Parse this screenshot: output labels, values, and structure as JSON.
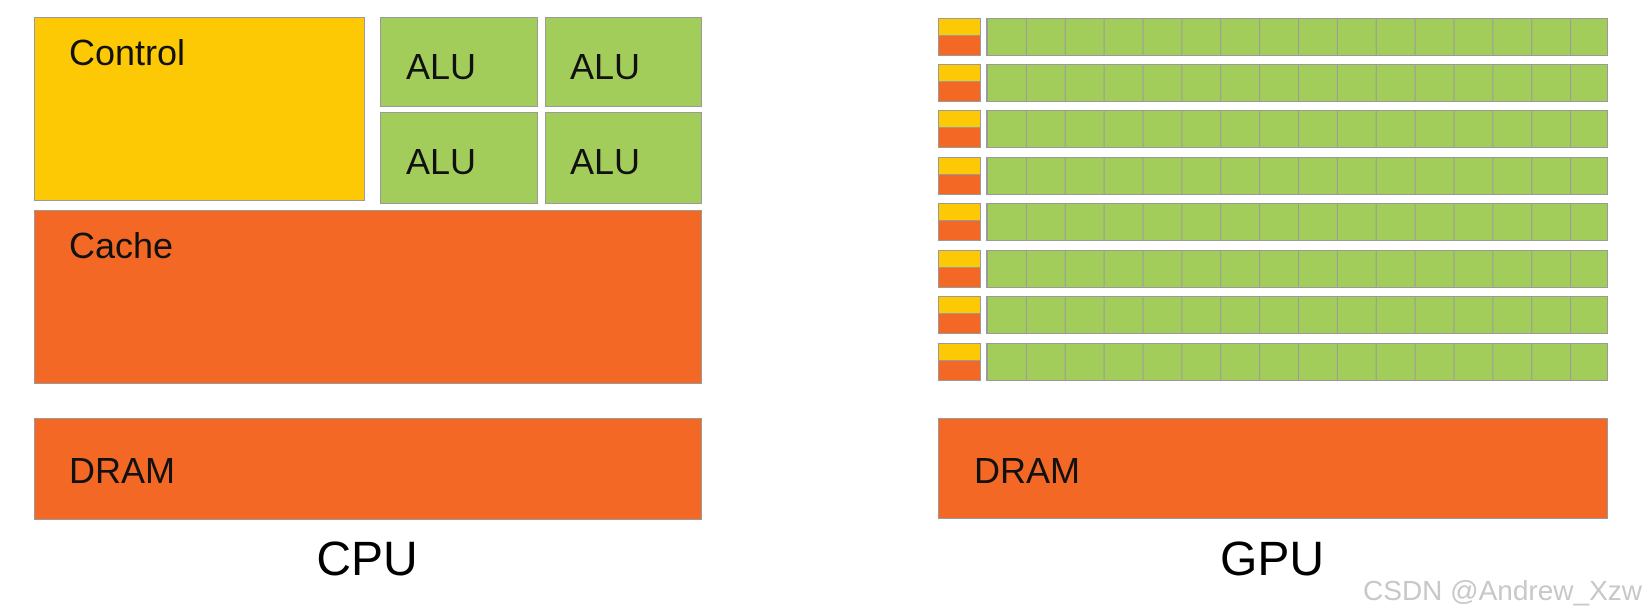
{
  "cpu": {
    "control_label": "Control",
    "alu_labels": [
      "ALU",
      "ALU",
      "ALU",
      "ALU"
    ],
    "cache_label": "Cache",
    "dram_label": "DRAM",
    "caption": "CPU"
  },
  "gpu": {
    "rows": 8,
    "alus_per_row": 16,
    "dram_label": "DRAM",
    "caption": "GPU"
  },
  "watermark": "CSDN @Andrew_Xzw",
  "colors": {
    "control": "#fdc905",
    "alu": "#a3cd5b",
    "cache_dram": "#f26824",
    "border": "#9a9a9a"
  }
}
